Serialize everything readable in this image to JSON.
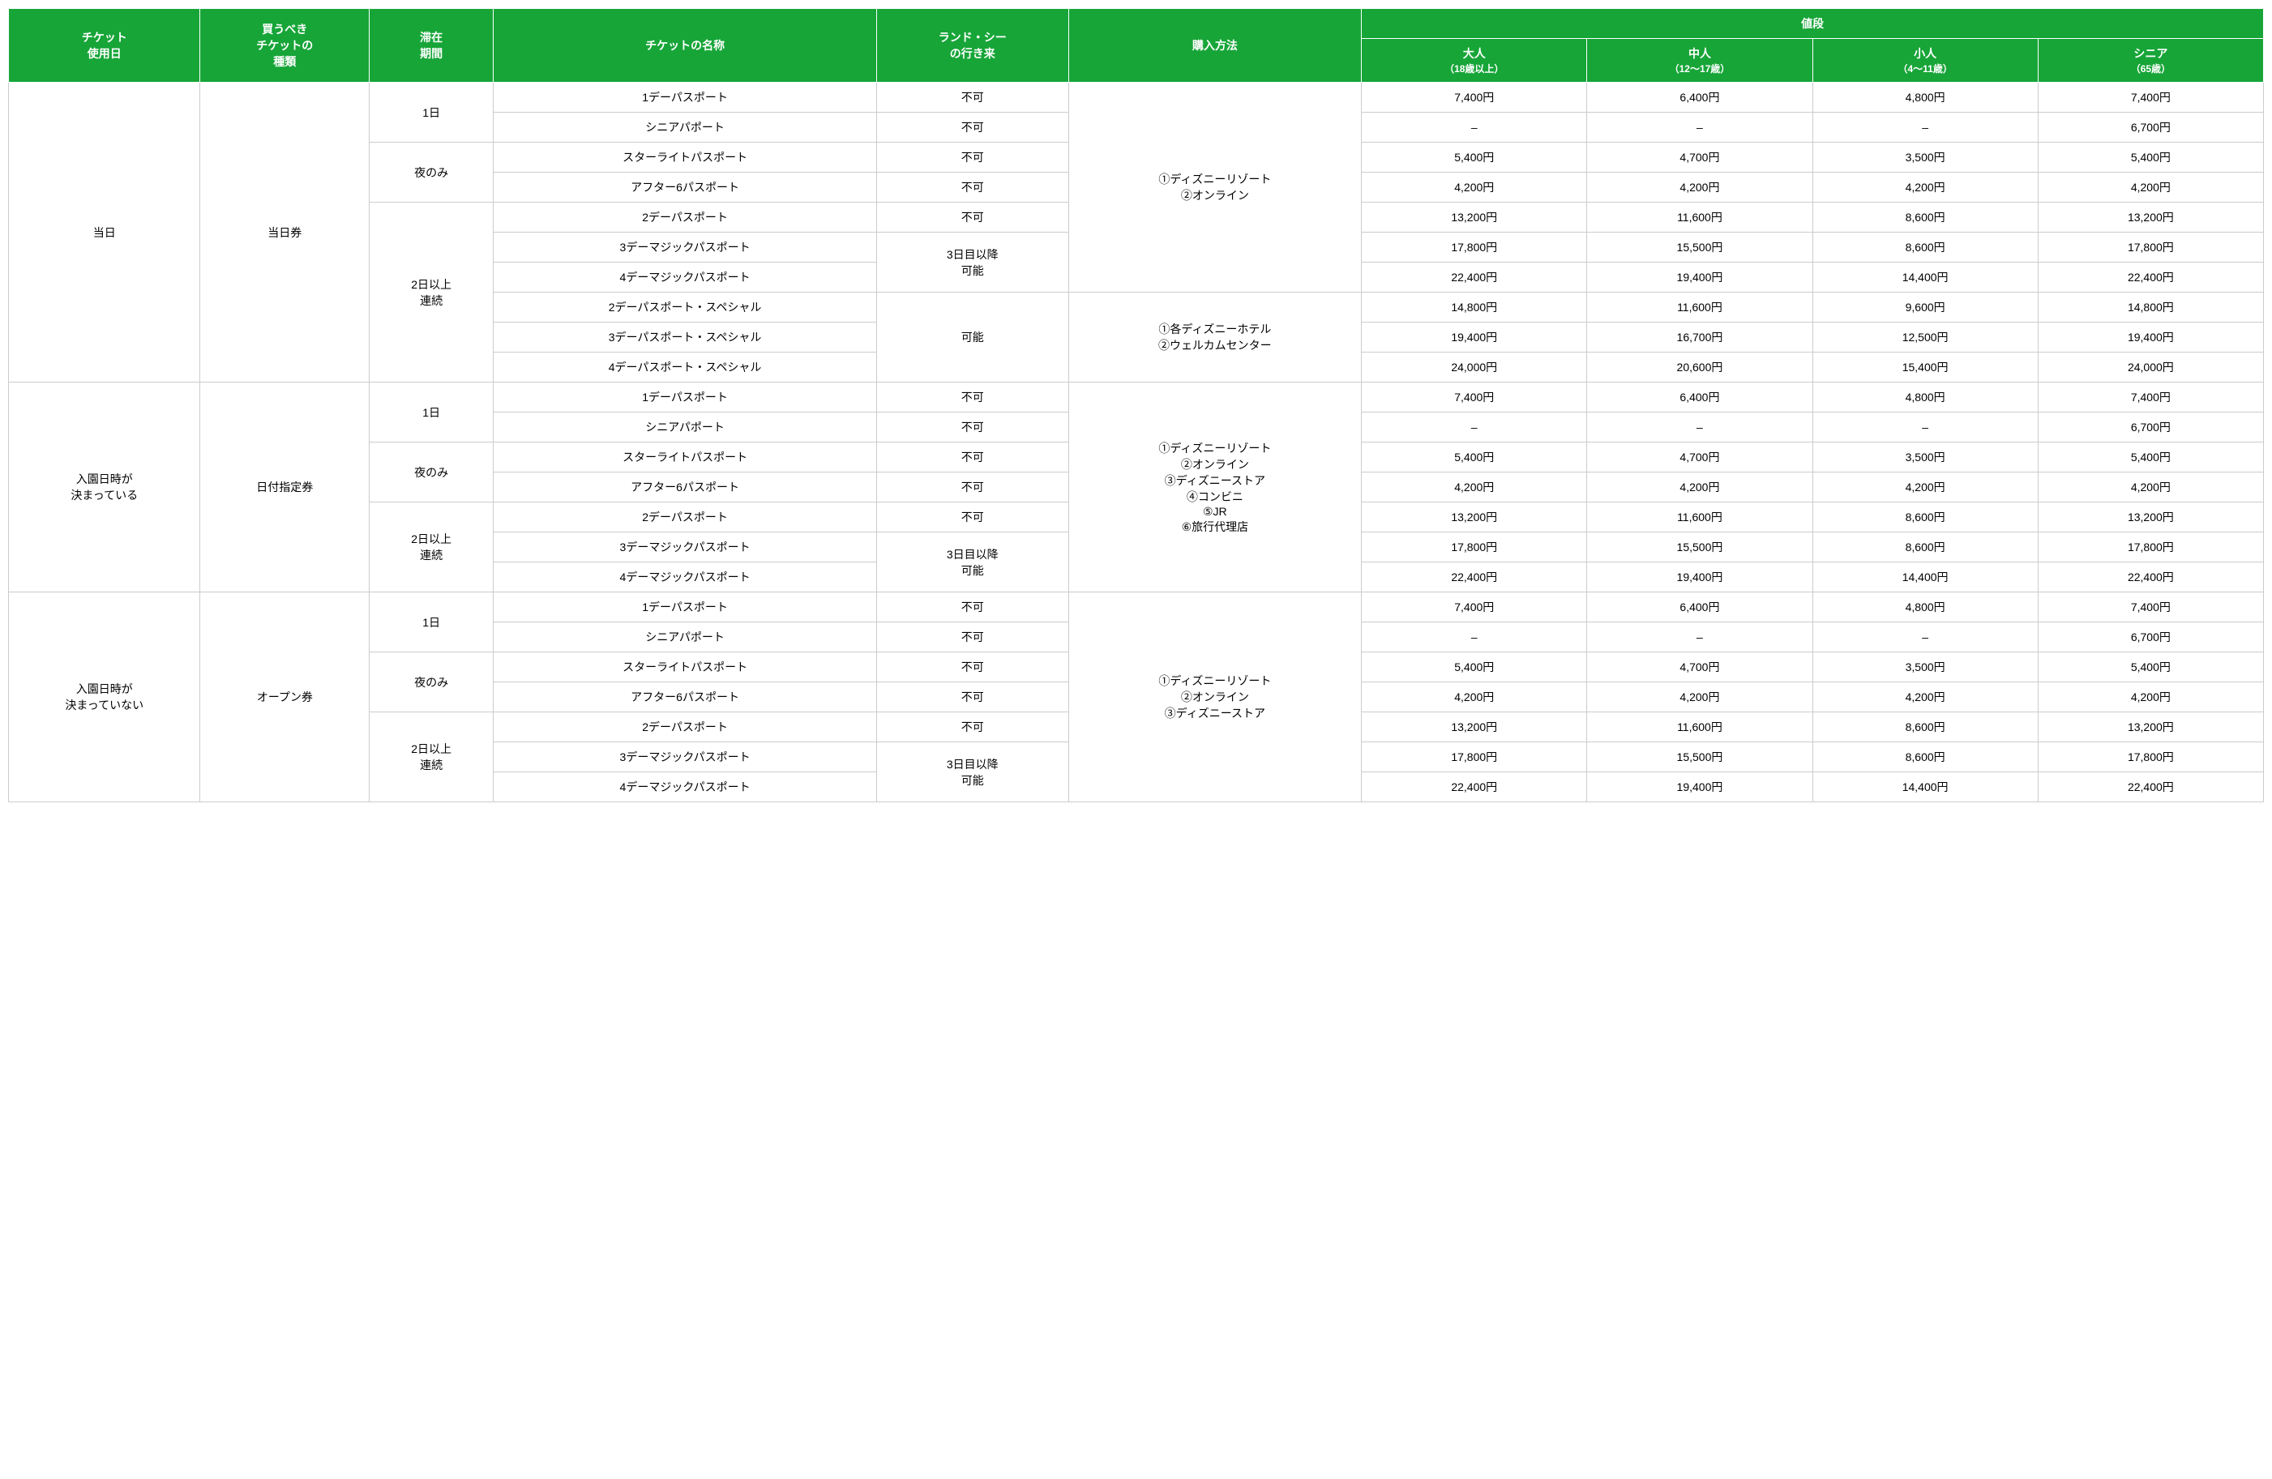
{
  "headers": {
    "h1": "チケット\n使用日",
    "h2": "買うべき\nチケットの\n種類",
    "h3": "滞在\n期間",
    "h4": "チケットの名称",
    "h5": "ランド・シー\nの行き来",
    "h6": "購入方法",
    "h7": "値段",
    "h7a": "大人",
    "h7a_sub": "（18歳以上）",
    "h7b": "中人",
    "h7b_sub": "（12〜17歳）",
    "h7c": "小人",
    "h7c_sub": "（4〜11歳）",
    "h7d": "シニア",
    "h7d_sub": "（65歳）"
  },
  "labels": {
    "use_day1": "当日",
    "use_day2": "入園日時が\n決まっている",
    "use_day3": "入園日時が\n決まっていない",
    "ticket_type1": "当日券",
    "ticket_type2": "日付指定券",
    "ticket_type3": "オープン券",
    "stay1": "1日",
    "stay2": "夜のみ",
    "stay3": "2日以上\n連続",
    "travel_no": "不可",
    "travel_3day": "3日目以降\n可能",
    "travel_yes": "可能",
    "buy1": "①ディズニーリゾート\n②オンライン",
    "buy2": "①各ディズニーホテル\n②ウェルカムセンター",
    "buy3": "①ディズニーリゾート\n②オンライン\n③ディズニーストア\n④コンビニ\n⑤JR\n⑥旅行代理店",
    "buy4": "①ディズニーリゾート\n②オンライン\n③ディズニーストア"
  },
  "tickets": {
    "t1": "1デーパスポート",
    "t2": "シニアパポート",
    "t3": "スターライトパスポート",
    "t4": "アフター6パスポート",
    "t5": "2デーパスポート",
    "t6": "3デーマジックパスポート",
    "t7": "4デーマジックパスポート",
    "t8": "2デーパスポート・スペシャル",
    "t9": "3デーパスポート・スペシャル",
    "t10": "4デーパスポート・スペシャル"
  },
  "prices": {
    "p1": {
      "a": "7,400円",
      "b": "6,400円",
      "c": "4,800円",
      "d": "7,400円"
    },
    "p2": {
      "a": "–",
      "b": "–",
      "c": "–",
      "d": "6,700円"
    },
    "p3": {
      "a": "5,400円",
      "b": "4,700円",
      "c": "3,500円",
      "d": "5,400円"
    },
    "p4": {
      "a": "4,200円",
      "b": "4,200円",
      "c": "4,200円",
      "d": "4,200円"
    },
    "p5": {
      "a": "13,200円",
      "b": "11,600円",
      "c": "8,600円",
      "d": "13,200円"
    },
    "p6": {
      "a": "17,800円",
      "b": "15,500円",
      "c": "8,600円",
      "d": "17,800円"
    },
    "p7": {
      "a": "22,400円",
      "b": "19,400円",
      "c": "14,400円",
      "d": "22,400円"
    },
    "p8": {
      "a": "14,800円",
      "b": "11,600円",
      "c": "9,600円",
      "d": "14,800円"
    },
    "p9": {
      "a": "19,400円",
      "b": "16,700円",
      "c": "12,500円",
      "d": "19,400円"
    },
    "p10": {
      "a": "24,000円",
      "b": "20,600円",
      "c": "15,400円",
      "d": "24,000円"
    }
  }
}
